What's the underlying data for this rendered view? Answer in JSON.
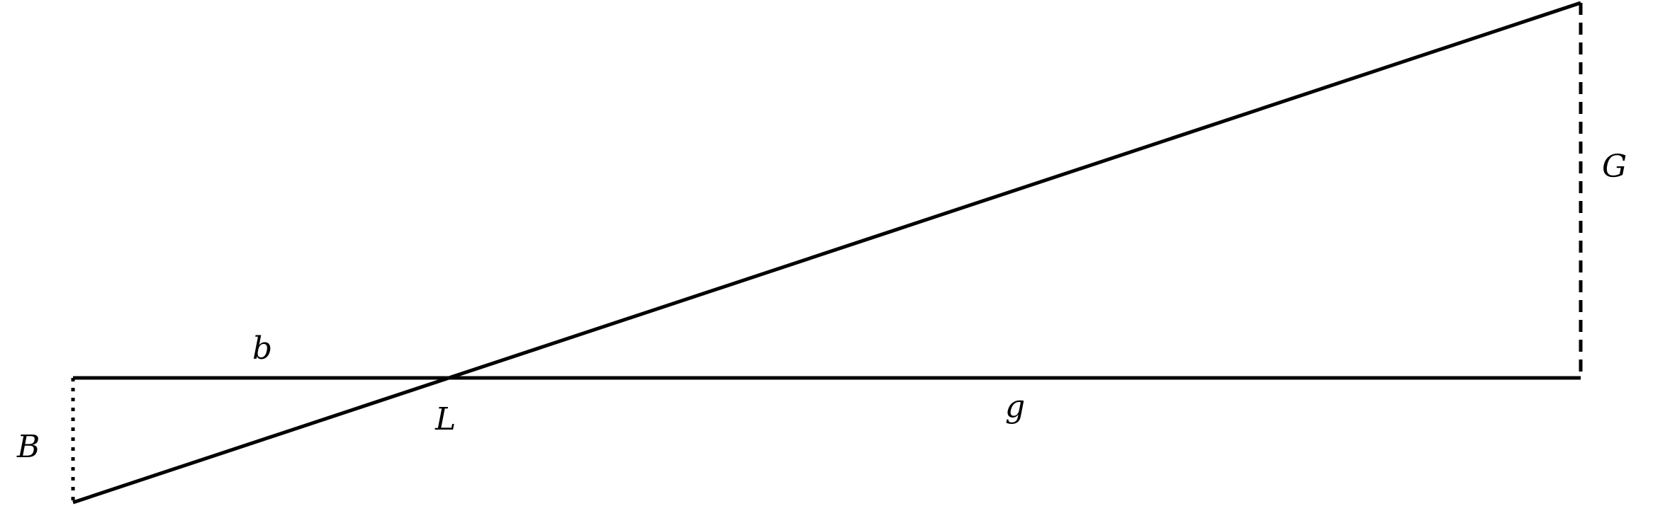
{
  "labels": {
    "b": "b",
    "B": "B",
    "L": "L",
    "g": "g",
    "G": "G"
  },
  "colors": {
    "line": "#000000",
    "background": "#ffffff"
  }
}
